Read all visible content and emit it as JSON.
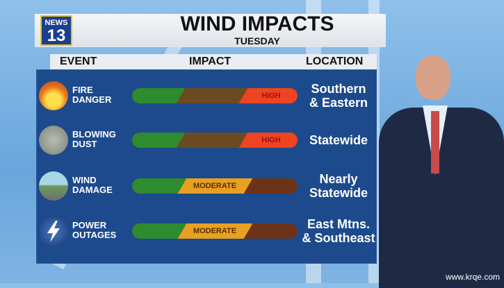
{
  "header": {
    "logo_text": "KRQE NEWS 13",
    "title": "WIND IMPACTS",
    "subtitle": "TUESDAY"
  },
  "columns": {
    "event": "EVENT",
    "impact": "IMPACT",
    "location": "LOCATION"
  },
  "rows": [
    {
      "event_line1": "FIRE",
      "event_line2": "DANGER",
      "icon": "fire-icon",
      "impact_level": "HIGH",
      "location_line1": "Southern",
      "location_line2": "& Eastern"
    },
    {
      "event_line1": "BLOWING",
      "event_line2": "DUST",
      "icon": "dust-icon",
      "impact_level": "HIGH",
      "location_line1": "Statewide",
      "location_line2": ""
    },
    {
      "event_line1": "WIND",
      "event_line2": "DAMAGE",
      "icon": "wind-damage-icon",
      "impact_level": "MODERATE",
      "location_line1": "Nearly",
      "location_line2": "Statewide"
    },
    {
      "event_line1": "POWER",
      "event_line2": "OUTAGES",
      "icon": "lightning-icon",
      "impact_level": "MODERATE",
      "location_line1": "East Mtns.",
      "location_line2": "& Southeast"
    }
  ],
  "colors": {
    "panel": "#1d4a8c",
    "low": "#2e8b2e",
    "moderate": "#e8a020",
    "high": "#ee4422"
  },
  "watermark": "www.krqe.com"
}
